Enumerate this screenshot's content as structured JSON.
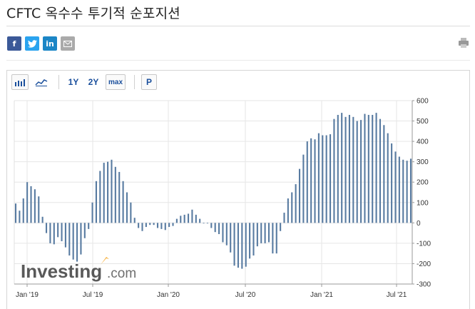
{
  "page": {
    "title": "CFTC 옥수수 투기적 순포지션"
  },
  "share": {
    "facebook": "f",
    "linkedin": "in"
  },
  "toolbar": {
    "range_1y": "1Y",
    "range_2y": "2Y",
    "range_max": "max",
    "p_label": "P"
  },
  "watermark": {
    "brand": "Investing",
    "suffix": ".com"
  },
  "colors": {
    "bar": "#587ba1",
    "grid": "#e6e6e6",
    "axis": "#9a9a9a"
  },
  "chart_data": {
    "type": "bar",
    "ylim": [
      -300,
      600
    ],
    "y_ticks": [
      600,
      500,
      400,
      300,
      200,
      100,
      0,
      -100,
      -200,
      -300
    ],
    "x_tick_labels": [
      "Jan '19",
      "Jul '19",
      "Jan '20",
      "Jul '20",
      "Jan '21",
      "Jul '21"
    ],
    "values": [
      95,
      60,
      120,
      200,
      180,
      165,
      130,
      30,
      -50,
      -100,
      -105,
      -70,
      -90,
      -120,
      -160,
      -180,
      -190,
      -155,
      -75,
      -30,
      100,
      205,
      255,
      295,
      300,
      310,
      275,
      250,
      205,
      150,
      100,
      25,
      -25,
      -40,
      -20,
      -10,
      -10,
      -25,
      -30,
      -35,
      -20,
      -15,
      20,
      35,
      40,
      45,
      65,
      40,
      20,
      0,
      0,
      -25,
      -45,
      -55,
      -95,
      -110,
      -145,
      -210,
      -220,
      -225,
      -215,
      -175,
      -160,
      -115,
      -100,
      -100,
      -95,
      -150,
      -150,
      -40,
      50,
      120,
      150,
      190,
      265,
      335,
      400,
      415,
      410,
      440,
      430,
      430,
      435,
      510,
      530,
      540,
      520,
      530,
      520,
      500,
      505,
      535,
      530,
      530,
      540,
      510,
      480,
      440,
      390,
      350,
      325,
      310,
      305,
      315
    ]
  }
}
